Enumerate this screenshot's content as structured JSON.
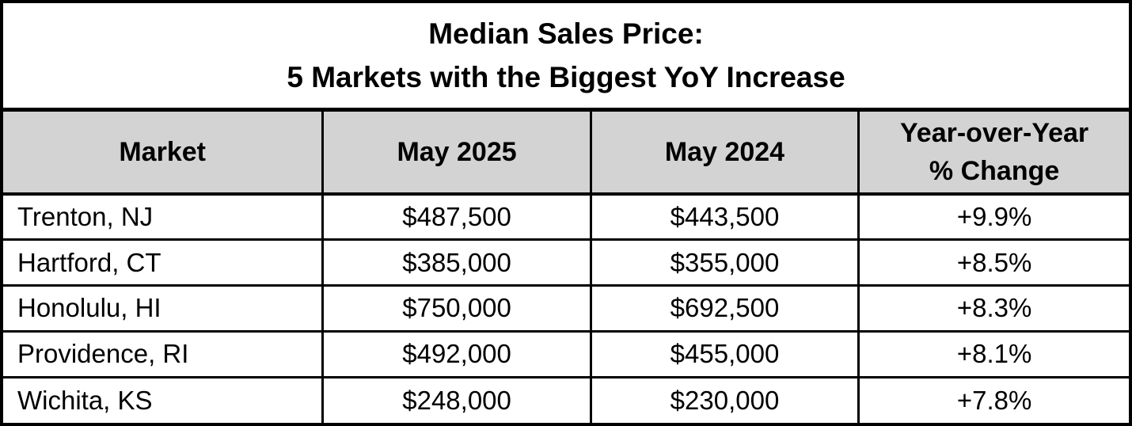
{
  "title": {
    "line1": "Median Sales Price:",
    "line2": "5 Markets with the Biggest YoY Increase"
  },
  "table": {
    "headers": [
      "Market",
      "May 2025",
      "May 2024",
      "Year-over-Year\n% Change"
    ],
    "rows": [
      {
        "market": "Trenton, NJ",
        "may_2025": "$487,500",
        "may_2024": "$443,500",
        "yoy_change": "+9.9%"
      },
      {
        "market": "Hartford, CT",
        "may_2025": "$385,000",
        "may_2024": "$355,000",
        "yoy_change": "+8.5%"
      },
      {
        "market": "Honolulu, HI",
        "may_2025": "$750,000",
        "may_2024": "$692,500",
        "yoy_change": "+8.3%"
      },
      {
        "market": "Providence, RI",
        "may_2025": "$492,000",
        "may_2024": "$455,000",
        "yoy_change": "+8.1%"
      },
      {
        "market": "Wichita, KS",
        "may_2025": "$248,000",
        "may_2024": "$230,000",
        "yoy_change": "+7.8%"
      }
    ]
  },
  "colors": {
    "header_background": "#d3d3d3",
    "row_background": "#ffffff",
    "border": "#000000",
    "text": "#000000"
  },
  "chart_data": {
    "type": "table",
    "title": "Median Sales Price: 5 Markets with the Biggest YoY Increase",
    "columns": [
      "Market",
      "May 2025",
      "May 2024",
      "Year-over-Year % Change"
    ],
    "rows": [
      [
        "Trenton, NJ",
        487500,
        443500,
        9.9
      ],
      [
        "Hartford, CT",
        385000,
        355000,
        8.5
      ],
      [
        "Honolulu, HI",
        750000,
        692500,
        8.3
      ],
      [
        "Providence, RI",
        492000,
        455000,
        8.1
      ],
      [
        "Wichita, KS",
        248000,
        230000,
        7.8
      ]
    ],
    "units": {
      "prices": "USD",
      "change": "percent YoY"
    }
  }
}
